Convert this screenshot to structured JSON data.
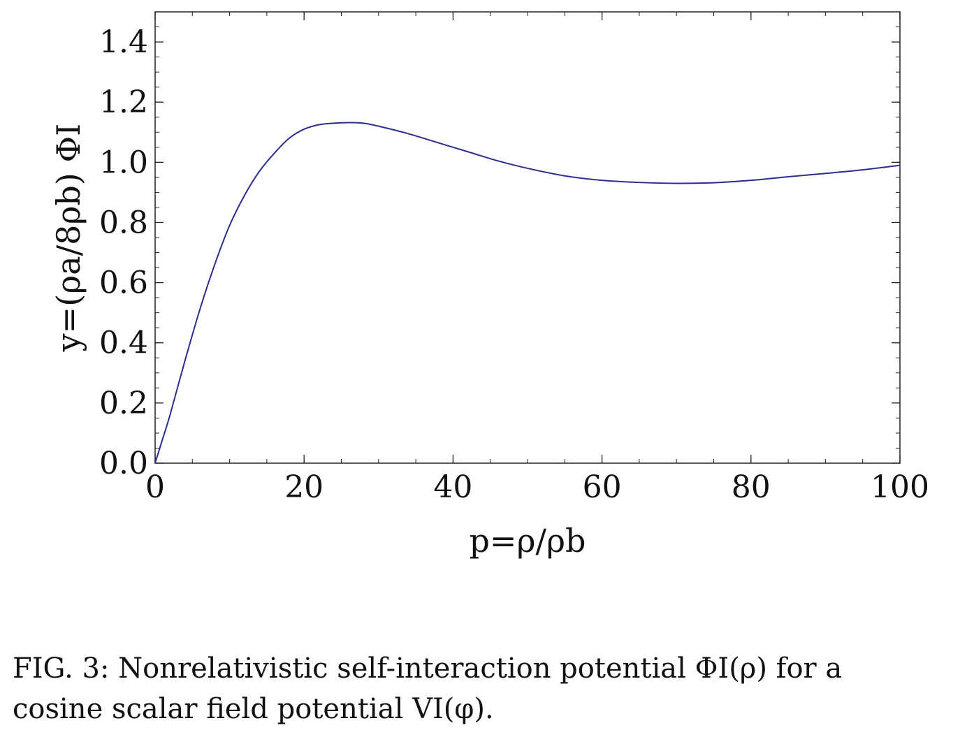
{
  "chart_data": {
    "type": "line",
    "xlabel": "p=ρ/ρb",
    "ylabel": "y=(ρa/8ρb) ΦI",
    "xlim": [
      0,
      100
    ],
    "ylim": [
      0,
      1.5
    ],
    "x_ticks": [
      0,
      20,
      40,
      60,
      80,
      100
    ],
    "x_tick_labels": [
      "0",
      "20",
      "40",
      "60",
      "80",
      "100"
    ],
    "y_ticks": [
      0,
      0.2,
      0.4,
      0.6,
      0.8,
      1.0,
      1.2,
      1.4
    ],
    "y_tick_labels": [
      "0.0",
      "0.2",
      "0.4",
      "0.6",
      "0.8",
      "1.0",
      "1.2",
      "1.4"
    ],
    "grid": false,
    "line_color": "#2b2e8f",
    "series": [
      {
        "x": [
          0,
          1,
          2,
          4,
          6,
          8,
          10,
          12,
          14,
          16,
          18,
          20,
          22,
          24,
          26,
          28,
          30,
          34,
          38,
          42,
          46,
          50,
          55,
          60,
          65,
          70,
          75,
          80,
          85,
          90,
          95,
          100
        ],
        "values": [
          0.0,
          0.08,
          0.16,
          0.34,
          0.51,
          0.66,
          0.79,
          0.89,
          0.97,
          1.03,
          1.08,
          1.11,
          1.125,
          1.13,
          1.132,
          1.13,
          1.12,
          1.095,
          1.065,
          1.035,
          1.005,
          0.98,
          0.955,
          0.94,
          0.933,
          0.93,
          0.932,
          0.94,
          0.952,
          0.963,
          0.975,
          0.99
        ]
      }
    ]
  },
  "caption": {
    "line1": "FIG. 3: Nonrelativistic self-interaction potential ΦI(ρ) for a",
    "line2": "cosine scalar field potential VI(φ)."
  }
}
